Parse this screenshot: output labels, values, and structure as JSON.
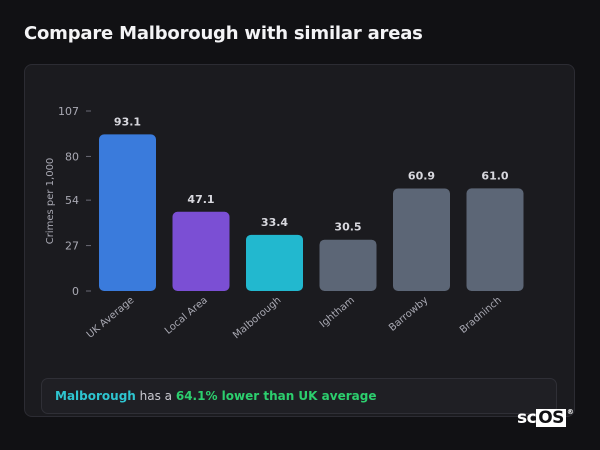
{
  "page": {
    "title": "Compare Malborough with similar areas"
  },
  "summary": {
    "area": "Malborough",
    "mid": " has a ",
    "stat": "64.1% lower than UK average"
  },
  "logo": {
    "text_a": "sc",
    "text_b": "OS",
    "mark": "®"
  },
  "colors": {
    "uk": "#3a7bdc",
    "local": "#7b4fd4",
    "area": "#22b8cf",
    "other": "#5c6676"
  },
  "chart_data": {
    "type": "bar",
    "title": "",
    "xlabel": "",
    "ylabel": "Crimes per 1,000",
    "categories": [
      "UK Average",
      "Local Area",
      "Malborough",
      "Ightham",
      "Barrowby",
      "Bradninch"
    ],
    "values": [
      93.1,
      47.1,
      33.4,
      30.5,
      60.9,
      61.0
    ],
    "value_labels": [
      "93.1",
      "47.1",
      "33.4",
      "30.5",
      "60.9",
      "61.0"
    ],
    "bar_colors": [
      "#3a7bdc",
      "#7b4fd4",
      "#22b8cf",
      "#5c6676",
      "#5c6676",
      "#5c6676"
    ],
    "yticks": [
      0,
      27,
      54,
      80,
      107
    ],
    "ylim": [
      0,
      107
    ],
    "grid": false,
    "legend": "none"
  }
}
